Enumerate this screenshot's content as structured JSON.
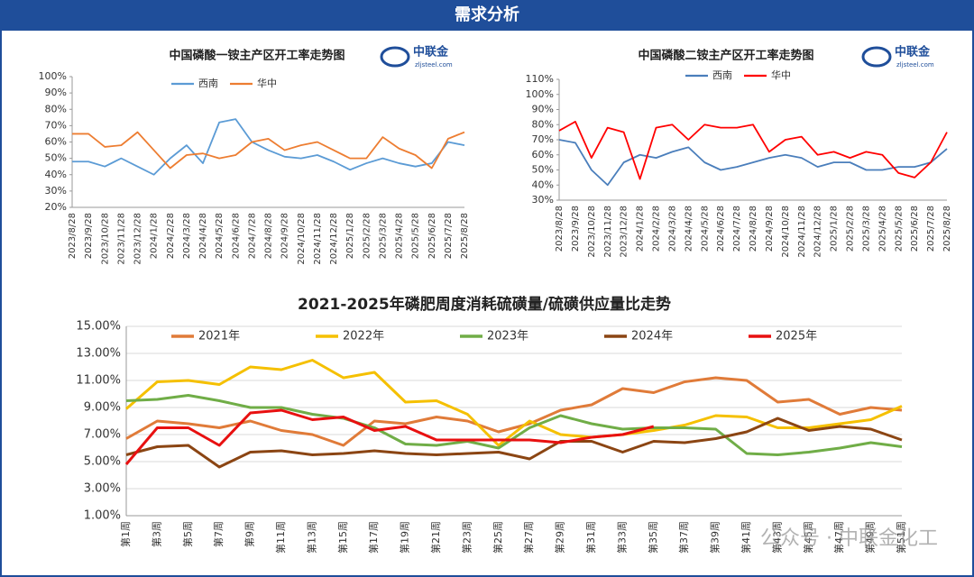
{
  "header": {
    "title": "需求分析"
  },
  "logo": {
    "name": "中联金",
    "site": "zljsteel.com"
  },
  "watermark": "公众号 · 中联金化工",
  "chart_data": [
    {
      "type": "line",
      "title": "中国磷酸一铵主产区开工率走势图",
      "categories": [
        "2023/8/28",
        "2023/9/28",
        "2023/10/28",
        "2023/11/28",
        "2023/12/28",
        "2024/1/28",
        "2024/2/28",
        "2024/3/28",
        "2024/4/28",
        "2024/5/28",
        "2024/6/28",
        "2024/7/28",
        "2024/8/28",
        "2024/9/28",
        "2024/10/28",
        "2024/11/28",
        "2024/12/28",
        "2025/1/28",
        "2025/2/28",
        "2025/3/28",
        "2025/4/28",
        "2025/5/28",
        "2025/6/28",
        "2025/7/28",
        "2025/8/28"
      ],
      "series": [
        {
          "name": "西南",
          "color": "#5b9bd5",
          "values": [
            48,
            48,
            45,
            50,
            45,
            40,
            50,
            58,
            47,
            72,
            74,
            60,
            55,
            51,
            50,
            52,
            48,
            43,
            47,
            50,
            47,
            45,
            47,
            60,
            58
          ]
        },
        {
          "name": "华中",
          "color": "#ed7d31",
          "values": [
            65,
            65,
            57,
            58,
            66,
            55,
            44,
            52,
            53,
            50,
            52,
            60,
            62,
            55,
            58,
            60,
            55,
            50,
            50,
            63,
            56,
            52,
            44,
            62,
            66
          ]
        }
      ],
      "ylim": [
        20,
        100
      ],
      "yticks": [
        {
          "value": 20,
          "label": "20%"
        },
        {
          "value": 30,
          "label": "30%"
        },
        {
          "value": 40,
          "label": "40%"
        },
        {
          "value": 50,
          "label": "50%"
        },
        {
          "value": 60,
          "label": "60%"
        },
        {
          "value": 70,
          "label": "70%"
        },
        {
          "value": 80,
          "label": "80%"
        },
        {
          "value": 90,
          "label": "90%"
        },
        {
          "value": 100,
          "label": "100%"
        }
      ],
      "grid": false
    },
    {
      "type": "line",
      "title": "中国磷酸二铵主产区开工率走势图",
      "categories": [
        "2023/8/28",
        "2023/9/28",
        "2023/10/28",
        "2023/11/28",
        "2023/12/28",
        "2024/1/28",
        "2024/2/28",
        "2024/3/28",
        "2024/4/28",
        "2024/5/28",
        "2024/6/28",
        "2024/7/28",
        "2024/8/28",
        "2024/9/28",
        "2024/10/28",
        "2024/11/28",
        "2024/12/28",
        "2025/1/28",
        "2025/2/28",
        "2025/3/28",
        "2025/4/28",
        "2025/5/28",
        "2025/6/28",
        "2025/7/28",
        "2025/8/28"
      ],
      "series": [
        {
          "name": "西南",
          "color": "#4a7ebb",
          "values": [
            70,
            68,
            50,
            40,
            55,
            60,
            58,
            62,
            65,
            55,
            50,
            52,
            55,
            58,
            60,
            58,
            52,
            55,
            55,
            50,
            50,
            52,
            52,
            55,
            64
          ]
        },
        {
          "name": "华中",
          "color": "#ff0000",
          "values": [
            76,
            82,
            58,
            78,
            75,
            44,
            78,
            80,
            70,
            80,
            78,
            78,
            80,
            62,
            70,
            72,
            60,
            62,
            58,
            62,
            60,
            48,
            45,
            55,
            75
          ]
        }
      ],
      "ylim": [
        30,
        110
      ],
      "yticks": [
        {
          "value": 30,
          "label": "30%"
        },
        {
          "value": 40,
          "label": "40%"
        },
        {
          "value": 50,
          "label": "50%"
        },
        {
          "value": 60,
          "label": "60%"
        },
        {
          "value": 70,
          "label": "70%"
        },
        {
          "value": 80,
          "label": "80%"
        },
        {
          "value": 90,
          "label": "90%"
        },
        {
          "value": 100,
          "label": "100%"
        },
        {
          "value": 110,
          "label": "110%"
        }
      ],
      "grid": false
    },
    {
      "type": "line",
      "title": "2021-2025年磷肥周度消耗硫磺量/硫磺供应量比走势",
      "categories": [
        "第1周",
        "第3周",
        "第5周",
        "第7周",
        "第9周",
        "第11周",
        "第13周",
        "第15周",
        "第17周",
        "第19周",
        "第21周",
        "第23周",
        "第25周",
        "第27周",
        "第29周",
        "第31周",
        "第33周",
        "第35周",
        "第37周",
        "第39周",
        "第41周",
        "第43周",
        "第45周",
        "第47周",
        "第49周",
        "第51周"
      ],
      "series": [
        {
          "name": "2021年",
          "color": "#e07b39",
          "values": [
            6.7,
            8.0,
            7.8,
            7.5,
            8.0,
            7.3,
            7.0,
            6.2,
            8.0,
            7.8,
            8.3,
            8.0,
            7.2,
            7.8,
            8.8,
            9.2,
            10.4,
            10.1,
            10.9,
            11.2,
            11.0,
            9.4,
            9.6,
            8.5,
            9.0,
            8.8
          ]
        },
        {
          "name": "2022年",
          "color": "#f5c000",
          "values": [
            8.9,
            10.9,
            11.0,
            10.7,
            12.0,
            11.8,
            12.5,
            11.2,
            11.6,
            9.4,
            9.5,
            8.5,
            6.2,
            8.0,
            7.0,
            6.8,
            7.0,
            7.3,
            7.7,
            8.4,
            8.3,
            7.5,
            7.5,
            7.8,
            8.1,
            9.1
          ]
        },
        {
          "name": "2023年",
          "color": "#70ad47",
          "values": [
            9.5,
            9.6,
            9.9,
            9.5,
            9.0,
            9.0,
            8.5,
            8.2,
            7.5,
            6.3,
            6.2,
            6.5,
            6.0,
            7.5,
            8.4,
            7.8,
            7.4,
            7.5,
            7.5,
            7.4,
            5.6,
            5.5,
            5.7,
            6.0,
            6.4,
            6.1
          ]
        },
        {
          "name": "2024年",
          "color": "#8b4513",
          "values": [
            5.5,
            6.1,
            6.2,
            4.6,
            5.7,
            5.8,
            5.5,
            5.6,
            5.8,
            5.6,
            5.5,
            5.6,
            5.7,
            5.2,
            6.5,
            6.5,
            5.7,
            6.5,
            6.4,
            6.7,
            7.2,
            8.2,
            7.3,
            7.6,
            7.4,
            6.6
          ]
        },
        {
          "name": "2025年",
          "color": "#e81010",
          "values": [
            4.8,
            7.5,
            7.5,
            6.2,
            8.6,
            8.8,
            8.1,
            8.3,
            7.3,
            7.6,
            6.6,
            6.6,
            6.6,
            6.6,
            6.4,
            6.8,
            7.0,
            7.6,
            null,
            null,
            null,
            null,
            null,
            null,
            null,
            null
          ]
        }
      ],
      "ylim": [
        1,
        15
      ],
      "yticks": [
        {
          "value": 1,
          "label": "1.00%"
        },
        {
          "value": 3,
          "label": "3.00%"
        },
        {
          "value": 5,
          "label": "5.00%"
        },
        {
          "value": 7,
          "label": "7.00%"
        },
        {
          "value": 9,
          "label": "9.00%"
        },
        {
          "value": 11,
          "label": "11.00%"
        },
        {
          "value": 13,
          "label": "13.00%"
        },
        {
          "value": 15,
          "label": "15.00%"
        }
      ],
      "grid": true
    }
  ]
}
